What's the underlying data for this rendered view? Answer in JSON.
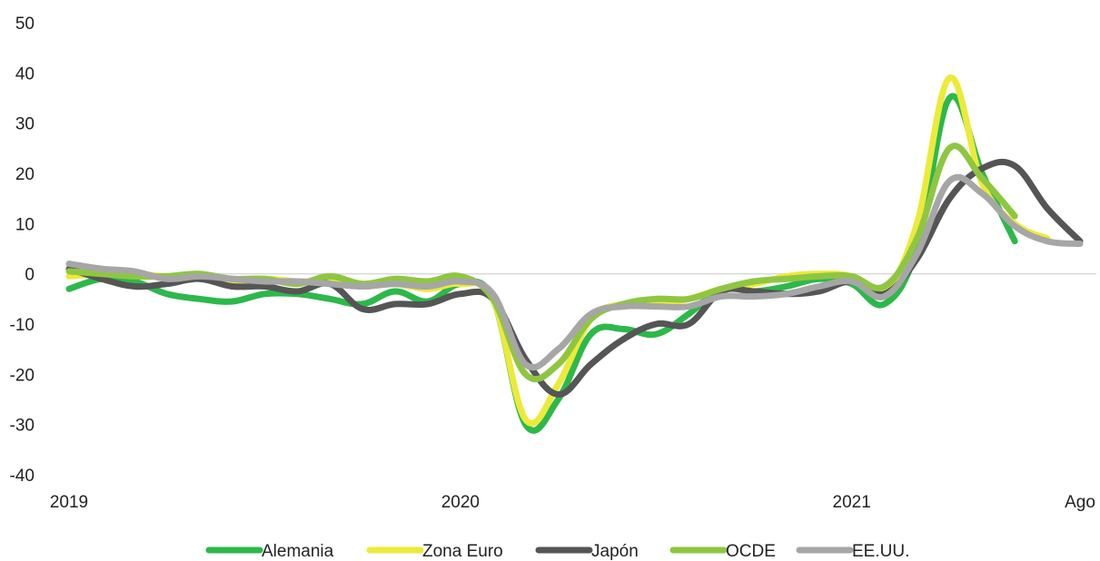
{
  "chart_data": {
    "type": "line",
    "title": "",
    "xlabel": "",
    "ylabel": "",
    "ylim": [
      -40,
      50
    ],
    "yticks": [
      -40,
      -30,
      -20,
      -10,
      0,
      10,
      20,
      30,
      40,
      50
    ],
    "xlim": [
      0,
      31
    ],
    "x_tick_labels": [
      {
        "x": 0,
        "label": "2019"
      },
      {
        "x": 12,
        "label": "2020"
      },
      {
        "x": 24,
        "label": "2021"
      },
      {
        "x": 31,
        "label": "Ago"
      }
    ],
    "grid": false,
    "zero_line": true,
    "legend_position": "bottom",
    "series": [
      {
        "name": "Alemania",
        "color": "#2db84b",
        "x": [
          0,
          1,
          2,
          3,
          4,
          5,
          6,
          7,
          8,
          9,
          10,
          11,
          12,
          13,
          14,
          15,
          16,
          17,
          18,
          19,
          20,
          21,
          22,
          23,
          24,
          25,
          26,
          27,
          28,
          29
        ],
        "values": [
          -3,
          -1,
          -1.5,
          -4,
          -5,
          -5.5,
          -4,
          -4,
          -5,
          -6,
          -3.5,
          -5.5,
          -2,
          -5,
          -30,
          -25,
          -12,
          -11,
          -12,
          -8,
          -3,
          -3.5,
          -2.5,
          -1,
          -2,
          -6,
          5,
          35,
          20,
          6.5
        ]
      },
      {
        "name": "Zona Euro",
        "color": "#ecea3a",
        "x": [
          0,
          1,
          2,
          3,
          4,
          5,
          6,
          7,
          8,
          9,
          10,
          11,
          12,
          13,
          14,
          15,
          16,
          17,
          18,
          19,
          20,
          21,
          22,
          23,
          24,
          25,
          26,
          27,
          28,
          29,
          30
        ],
        "values": [
          -0.5,
          0,
          0,
          -0.5,
          -0.5,
          -1.5,
          -1,
          -1.5,
          -1.5,
          -2.5,
          -2,
          -3,
          -2,
          -5,
          -29,
          -22,
          -9,
          -6,
          -6,
          -5,
          -3,
          -2,
          -0.5,
          0,
          -0.5,
          -3.5,
          10,
          39,
          18,
          10,
          7
        ]
      },
      {
        "name": "Japón",
        "color": "#555555",
        "x": [
          0,
          1,
          2,
          3,
          4,
          5,
          6,
          7,
          8,
          9,
          10,
          11,
          12,
          13,
          14,
          15,
          16,
          17,
          18,
          19,
          20,
          21,
          22,
          23,
          24,
          25,
          26,
          27,
          28,
          29,
          30,
          31
        ],
        "values": [
          1,
          -1,
          -2.5,
          -2,
          -1,
          -2.5,
          -2.5,
          -3.5,
          -2,
          -7,
          -6,
          -6,
          -4,
          -5,
          -17,
          -24,
          -18,
          -13,
          -10,
          -10,
          -3.5,
          -3.5,
          -4,
          -3.5,
          -1.5,
          -4,
          3,
          15,
          21,
          21.5,
          13,
          6.5
        ]
      },
      {
        "name": "OCDE",
        "color": "#8fc641",
        "x": [
          0,
          1,
          2,
          3,
          4,
          5,
          6,
          7,
          8,
          9,
          10,
          11,
          12,
          13,
          14,
          15,
          16,
          17,
          18,
          19,
          20,
          21,
          22,
          23,
          24,
          25,
          26,
          27,
          28,
          29
        ],
        "values": [
          0.5,
          0,
          -0.5,
          -0.5,
          0,
          -1,
          -1,
          -2,
          -0.5,
          -2,
          -1,
          -1.5,
          -0.5,
          -5,
          -20,
          -18,
          -9,
          -6,
          -5,
          -5,
          -3,
          -1.5,
          -1,
          -0.5,
          -0.5,
          -2.5,
          7,
          25,
          19,
          11.5
        ]
      },
      {
        "name": "EE.UU.",
        "color": "#a6a6a6",
        "x": [
          0,
          1,
          2,
          3,
          4,
          5,
          6,
          7,
          8,
          9,
          10,
          11,
          12,
          13,
          14,
          15,
          16,
          17,
          18,
          19,
          20,
          21,
          22,
          23,
          24,
          25,
          26,
          27,
          28,
          29,
          30,
          31
        ],
        "values": [
          2,
          1,
          0.5,
          -1,
          -0.5,
          -1,
          -1.5,
          -1.5,
          -2,
          -2.5,
          -2,
          -2.5,
          -1.5,
          -4,
          -18,
          -15,
          -8,
          -6.5,
          -6.5,
          -6.5,
          -4.5,
          -4.5,
          -4,
          -2.5,
          -1.5,
          -4.5,
          4,
          18.5,
          16,
          9.5,
          6.5,
          6
        ]
      }
    ]
  }
}
